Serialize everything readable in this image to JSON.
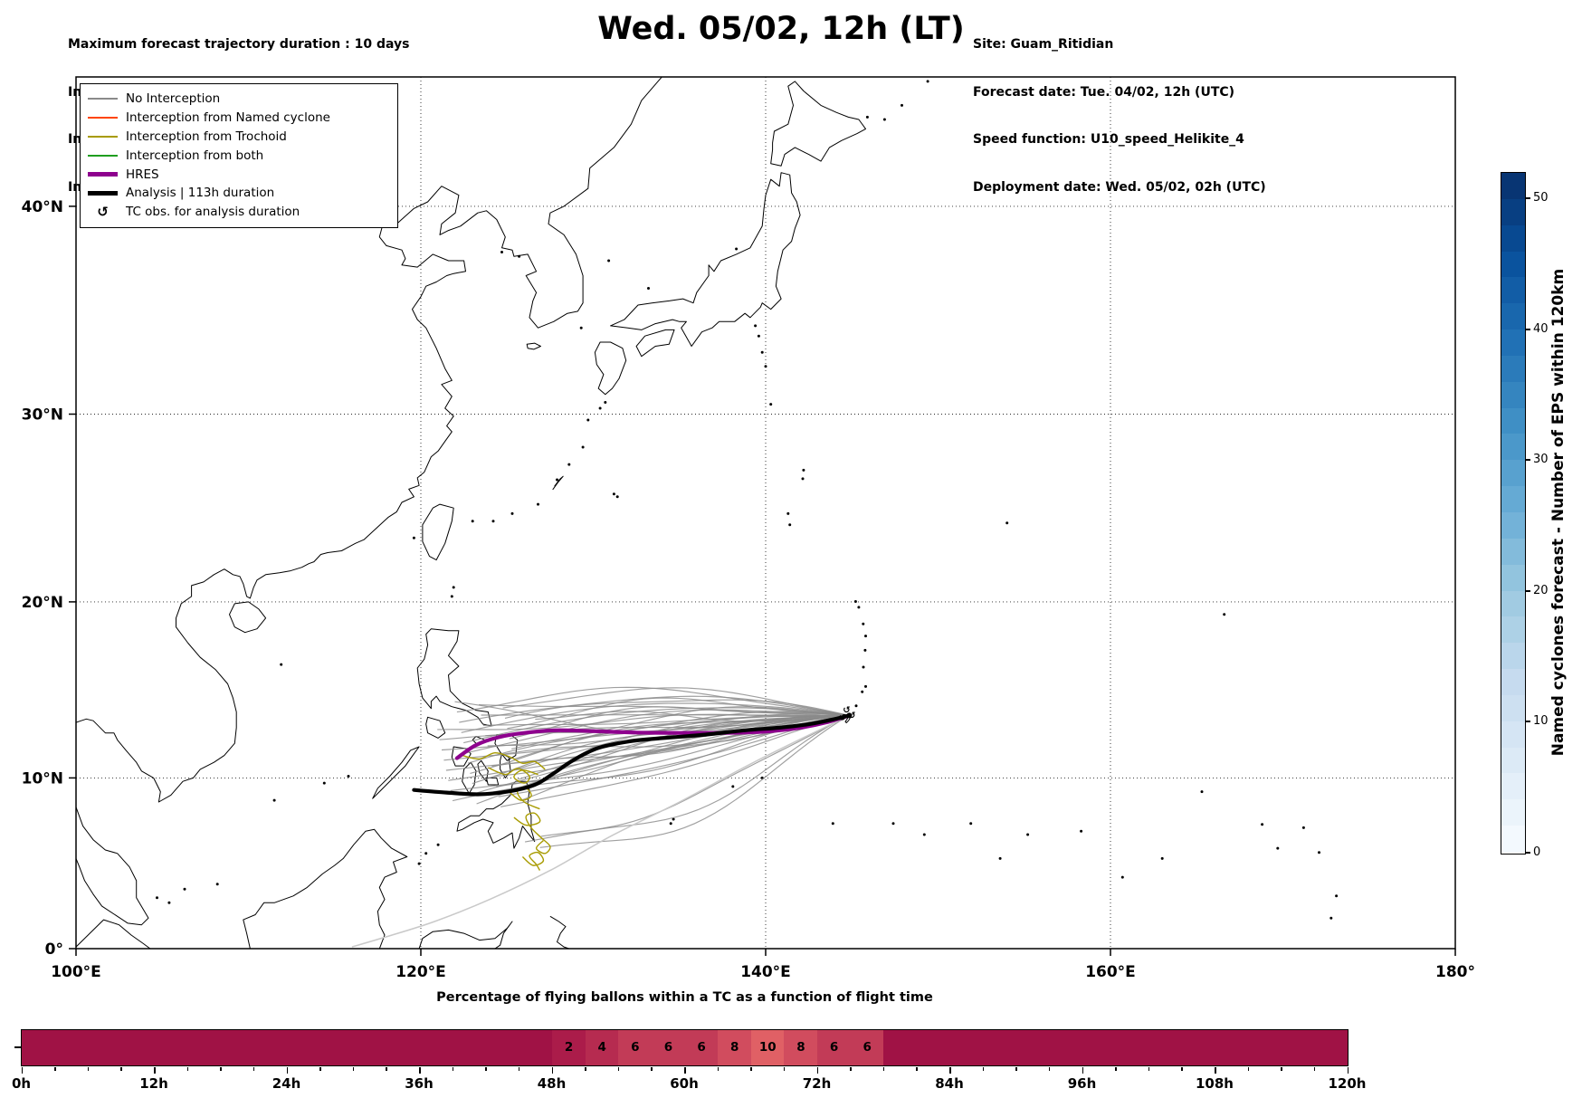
{
  "header": {
    "left": [
      "Maximum forecast trajectory duration : 10 days",
      "Intercept distance: 300km",
      "Intercept RW2 (EPS):  30km/h2",
      "Intercept RW2 (HRES): 30km/h2"
    ],
    "title": "Wed. 05/02, 12h (LT)",
    "right": [
      "Site: Guam_Ritidian",
      "Forecast date: Tue. 04/02, 12h (UTC)",
      "Speed function: U10_speed_Helikite_4",
      "Deployment date: Wed. 05/02, 02h (UTC)"
    ]
  },
  "legend": {
    "items": [
      {
        "label": "No Interception",
        "color": "#8a8a8a",
        "lw": 2,
        "kind": "line"
      },
      {
        "label": "Interception from Named cyclone",
        "color": "#ff4500",
        "lw": 2,
        "kind": "line"
      },
      {
        "label": "Interception from Trochoid",
        "color": "#a89b00",
        "lw": 2,
        "kind": "line"
      },
      {
        "label": "Interception from both",
        "color": "#1f9e1f",
        "lw": 2,
        "kind": "line"
      },
      {
        "label": "HRES",
        "color": "#8e008e",
        "lw": 5,
        "kind": "line"
      },
      {
        "label": "Analysis | 113h duration",
        "color": "#000000",
        "lw": 5,
        "kind": "line"
      },
      {
        "label": "TC obs. for analysis duration",
        "symbol": "↺",
        "kind": "symbol"
      }
    ]
  },
  "map_axes": {
    "lon_ticks": [
      {
        "value": 100,
        "label": "100°E"
      },
      {
        "value": 120,
        "label": "120°E"
      },
      {
        "value": 140,
        "label": "140°E"
      },
      {
        "value": 160,
        "label": "160°E"
      },
      {
        "value": 180,
        "label": "180°"
      }
    ],
    "lat_ticks": [
      {
        "value": 0,
        "label": "0°"
      },
      {
        "value": 10,
        "label": "10°N"
      },
      {
        "value": 20,
        "label": "20°N"
      },
      {
        "value": 30,
        "label": "30°N"
      },
      {
        "value": 40,
        "label": "40°N"
      }
    ]
  },
  "chart_data": {
    "type": "ensemble-trajectory-map",
    "site": {
      "name": "Guam_Ritidian",
      "lon": 144.85,
      "lat": 13.6
    },
    "map_extent": {
      "lon_min": 100,
      "lon_max": 180,
      "lat_min": 0,
      "lat_max": 46.9
    },
    "ensemble": {
      "count": 44,
      "color": "#8a8a8a",
      "description": "EPS balloon trajectories between Guam and the Philippines, no interception"
    },
    "analysis_track": {
      "color": "#000000",
      "duration_h": 113,
      "points": [
        [
          119.6,
          9.3
        ],
        [
          121.5,
          9.15
        ],
        [
          123.3,
          9.05
        ],
        [
          125.0,
          9.2
        ],
        [
          126.6,
          9.6
        ],
        [
          127.6,
          10.2
        ],
        [
          128.8,
          11.0
        ],
        [
          130.2,
          11.7
        ],
        [
          132.0,
          12.1
        ],
        [
          134.0,
          12.3
        ],
        [
          136.5,
          12.5
        ],
        [
          138.8,
          12.75
        ],
        [
          140.8,
          12.9
        ],
        [
          142.5,
          13.1
        ],
        [
          143.8,
          13.35
        ],
        [
          144.85,
          13.6
        ]
      ]
    },
    "hres_track": {
      "color": "#8e008e",
      "points": [
        [
          122.1,
          11.15
        ],
        [
          123.2,
          11.9
        ],
        [
          124.5,
          12.35
        ],
        [
          126.0,
          12.6
        ],
        [
          127.8,
          12.75
        ],
        [
          130.0,
          12.7
        ],
        [
          132.5,
          12.62
        ],
        [
          135.0,
          12.6
        ],
        [
          137.5,
          12.6
        ],
        [
          140.0,
          12.68
        ],
        [
          142.0,
          12.9
        ],
        [
          143.5,
          13.2
        ],
        [
          144.85,
          13.6
        ]
      ]
    },
    "outlier_track": {
      "color": "#c9c9c9",
      "points": [
        [
          144.85,
          13.6
        ],
        [
          139.5,
          11.0
        ],
        [
          135.0,
          8.6
        ],
        [
          131.0,
          6.6
        ],
        [
          127.5,
          4.6
        ],
        [
          124.0,
          2.9
        ],
        [
          120.8,
          1.6
        ],
        [
          118.0,
          0.7
        ],
        [
          116.0,
          0.1
        ]
      ]
    },
    "trochoid_tracks": {
      "color": "#a89b00",
      "paths": [
        [
          [
            122.4,
            11.3
          ],
          [
            123.4,
            11.1
          ],
          [
            124.3,
            11.45
          ],
          [
            125.2,
            11.2
          ],
          [
            125.9,
            10.85
          ],
          [
            126.6,
            10.95
          ],
          [
            127.2,
            10.5
          ]
        ],
        [
          [
            123.9,
            10.6
          ],
          [
            124.9,
            10.2
          ],
          [
            125.6,
            10.55
          ],
          [
            126.3,
            10.1
          ],
          [
            126.0,
            9.7
          ],
          [
            125.4,
            10.05
          ],
          [
            125.9,
            10.45
          ],
          [
            126.8,
            10.2
          ]
        ],
        [
          [
            125.1,
            9.2
          ],
          [
            125.8,
            8.7
          ],
          [
            126.4,
            8.95
          ],
          [
            126.1,
            9.4
          ],
          [
            125.6,
            9.2
          ],
          [
            126.0,
            8.6
          ],
          [
            126.9,
            8.2
          ]
        ],
        [
          [
            125.4,
            7.7
          ],
          [
            126.1,
            7.25
          ],
          [
            126.9,
            7.45
          ],
          [
            126.6,
            7.95
          ],
          [
            126.1,
            7.75
          ],
          [
            126.4,
            7.1
          ],
          [
            127.0,
            6.5
          ],
          [
            127.5,
            6.0
          ],
          [
            127.2,
            5.6
          ],
          [
            126.7,
            5.9
          ],
          [
            127.1,
            6.35
          ]
        ],
        [
          [
            125.9,
            5.4
          ],
          [
            126.5,
            4.9
          ],
          [
            127.1,
            5.15
          ],
          [
            126.8,
            5.65
          ],
          [
            126.3,
            5.45
          ],
          [
            126.7,
            4.95
          ],
          [
            126.9,
            4.6
          ]
        ]
      ]
    },
    "tc_obs_symbol": "↺",
    "colorbar": {
      "label": "Named cyclones forecast - Number of EPS within 120km",
      "ticks": [
        0,
        10,
        20,
        30,
        40,
        50
      ],
      "vmin": 0,
      "vmax": 52,
      "colormap": "Blues"
    },
    "strip_chart": {
      "title": "Percentage of flying ballons within a TC as a function of flight time",
      "hours_max": 120,
      "bin_hours": 3,
      "major_tick_step_h": 12,
      "tick_labels": [
        "0h",
        "12h",
        "24h",
        "36h",
        "48h",
        "60h",
        "72h",
        "84h",
        "96h",
        "108h",
        "120h"
      ],
      "base_value": 0,
      "bins": [
        {
          "t_start": 48,
          "t_end": 51,
          "value": 2
        },
        {
          "t_start": 51,
          "t_end": 54,
          "value": 4
        },
        {
          "t_start": 54,
          "t_end": 57,
          "value": 6
        },
        {
          "t_start": 57,
          "t_end": 60,
          "value": 6
        },
        {
          "t_start": 60,
          "t_end": 63,
          "value": 6
        },
        {
          "t_start": 63,
          "t_end": 66,
          "value": 8
        },
        {
          "t_start": 66,
          "t_end": 69,
          "value": 10
        },
        {
          "t_start": 69,
          "t_end": 72,
          "value": 8
        },
        {
          "t_start": 72,
          "t_end": 75,
          "value": 6
        },
        {
          "t_start": 75,
          "t_end": 78,
          "value": 6
        }
      ],
      "value_colors": {
        "0": "#a01245",
        "2": "#ab1c4a",
        "4": "#b62b50",
        "6": "#c23b57",
        "8": "#d14c5e",
        "10": "#e06065"
      }
    }
  }
}
